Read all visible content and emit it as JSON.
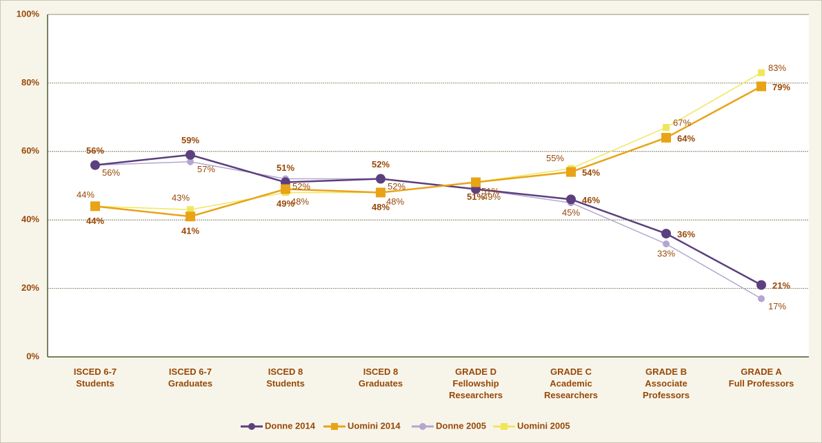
{
  "chart_data": {
    "type": "line",
    "categories": [
      "ISCED 6-7\nStudents",
      "ISCED 6-7\nGraduates",
      "ISCED 8\nStudents",
      "ISCED 8\nGraduates",
      "GRADE D\nFellowship\nResearchers",
      "GRADE C\nAcademic\nResearchers",
      "GRADE B\nAssociate\nProfessors",
      "GRADE A\nFull Professors"
    ],
    "series": [
      {
        "name": "Donne 2014",
        "color": "#5b3f7e",
        "marker": "circle",
        "values": [
          56,
          59,
          51,
          52,
          49,
          46,
          36,
          21
        ],
        "value_labels": [
          "56%",
          "59%",
          "51%",
          "52%",
          null,
          "46%",
          "36%",
          "21%"
        ]
      },
      {
        "name": "Uomini 2014",
        "color": "#e8a317",
        "marker": "square",
        "values": [
          44,
          41,
          49,
          48,
          51,
          54,
          64,
          79
        ],
        "value_labels": [
          "44%",
          "41%",
          "49%",
          "48%",
          "51%",
          "54%",
          "64%",
          "79%"
        ]
      },
      {
        "name": "Donne 2005",
        "color": "#b3a6cf",
        "marker": "circle",
        "values": [
          56,
          57,
          52,
          52,
          49,
          45,
          33,
          17
        ],
        "value_labels": [
          "56%",
          "57%",
          "52%",
          "52%",
          "49%",
          "45%",
          "33%",
          "17%"
        ]
      },
      {
        "name": "Uomini 2005",
        "color": "#f0e65a",
        "marker": "square",
        "values": [
          44,
          43,
          48,
          48,
          51,
          55,
          67,
          83
        ],
        "value_labels": [
          "44%",
          "43%",
          "48%",
          "48%",
          "51%",
          "55%",
          "67%",
          "83%"
        ]
      }
    ],
    "ylim": [
      0,
      100
    ],
    "yticks": [
      {
        "value": 0,
        "label": "0%"
      },
      {
        "value": 20,
        "label": "20%"
      },
      {
        "value": 40,
        "label": "40%"
      },
      {
        "value": 60,
        "label": "60%"
      },
      {
        "value": 80,
        "label": "80%"
      },
      {
        "value": 100,
        "label": "100%"
      }
    ],
    "grid": true,
    "legend": "bottom"
  }
}
